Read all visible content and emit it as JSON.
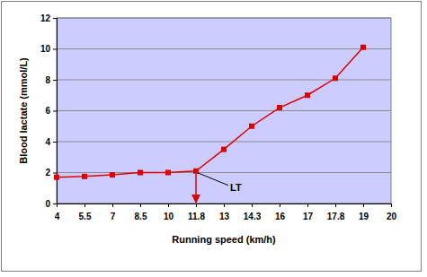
{
  "chart_data": {
    "type": "line",
    "x_label": "Running speed (km/h)",
    "y_label": "Blood lactate (mmol/L)",
    "categories": [
      "4",
      "5.5",
      "7",
      "8.5",
      "10",
      "11.8",
      "13",
      "14.3",
      "16",
      "17",
      "17.8",
      "19",
      "20"
    ],
    "values": [
      1.7,
      1.75,
      1.85,
      2.0,
      2.0,
      2.1,
      3.5,
      5.0,
      6.2,
      7.0,
      8.1,
      10.1,
      null
    ],
    "color": "#dd0000",
    "marker": "square",
    "line_style": "solid",
    "ylim": [
      0,
      12
    ],
    "yticks": [
      0,
      2,
      4,
      6,
      8,
      10,
      12
    ],
    "grid": true,
    "annotations": [
      {
        "text": "LT",
        "x": "11.8",
        "y": 2.1
      }
    ]
  }
}
